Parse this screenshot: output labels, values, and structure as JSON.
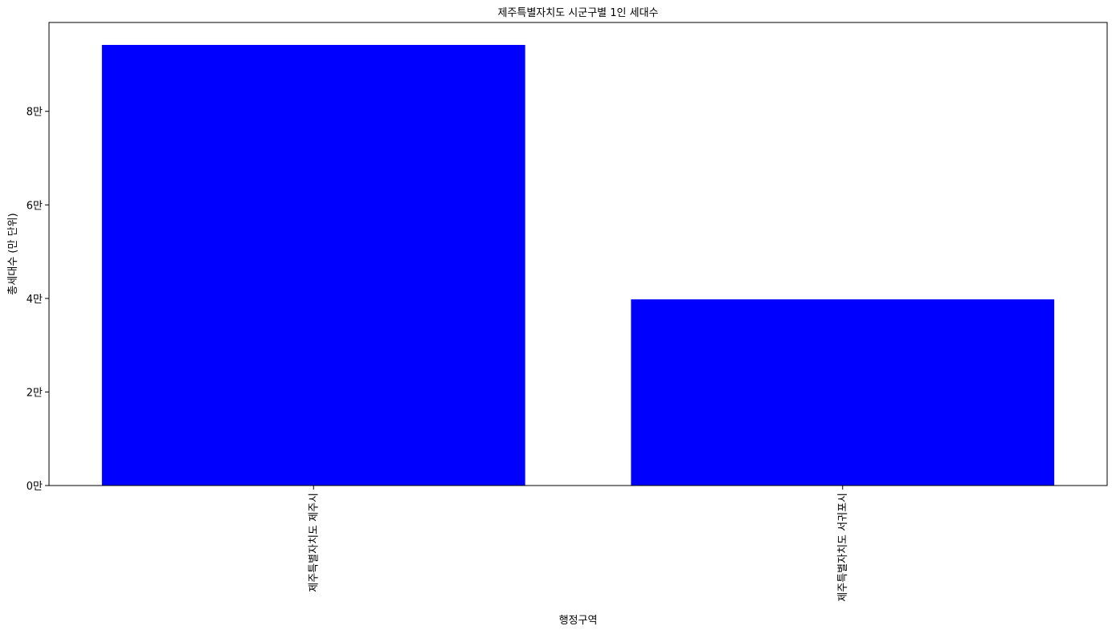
{
  "chart_data": {
    "type": "bar",
    "title": "제주특별자치도 시군구별 1인 세대수",
    "xlabel": "행정구역",
    "ylabel": "총세대수 (만 단위)",
    "categories": [
      "제주특별자치도 제주시",
      "제주특별자치도 서귀포시"
    ],
    "values": [
      94200,
      39800
    ],
    "ylim": [
      0,
      99000
    ],
    "yticks": [
      0,
      20000,
      40000,
      60000,
      80000
    ],
    "ytick_labels": [
      "0만",
      "2만",
      "4만",
      "6만",
      "8만"
    ],
    "bar_color": "#0000ff",
    "grid": false,
    "legend": "none"
  }
}
